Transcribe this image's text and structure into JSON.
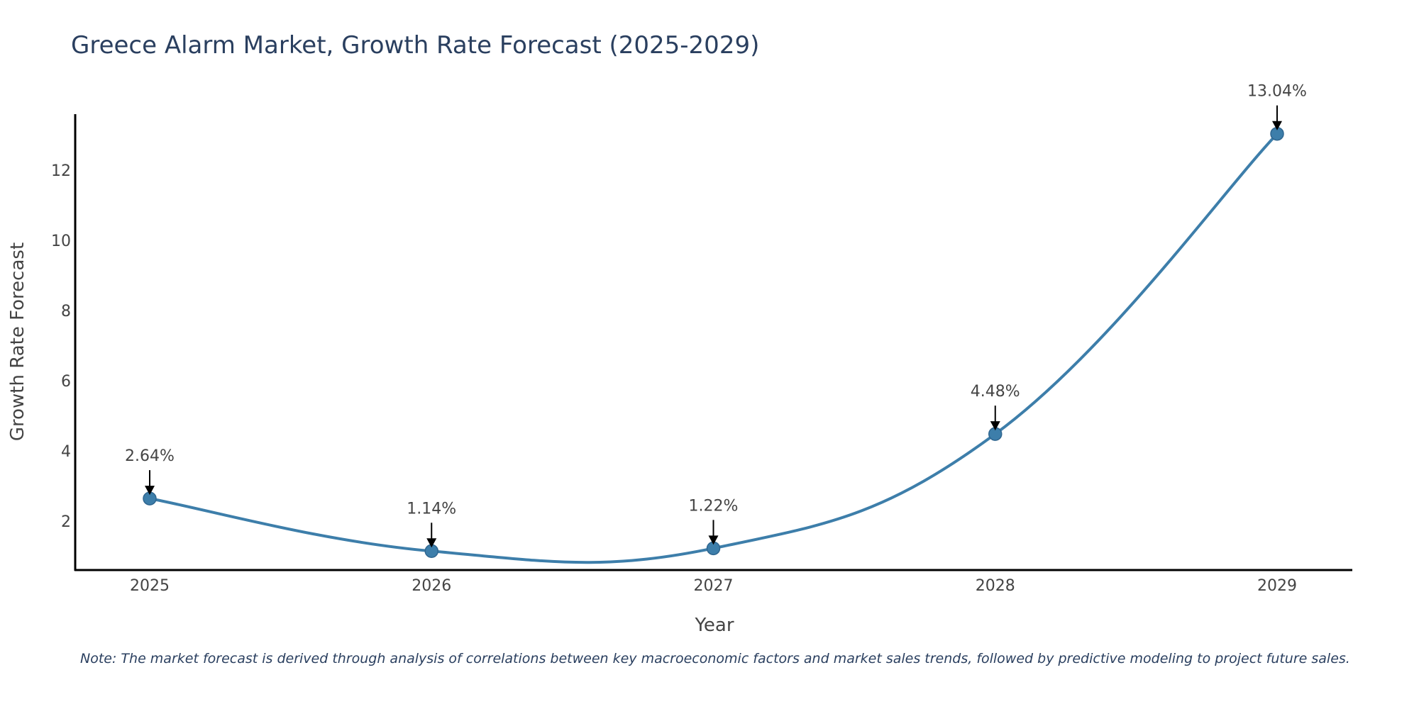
{
  "chart_data": {
    "type": "line",
    "title": "Greece Alarm Market, Growth Rate Forecast (2025-2029)",
    "xlabel": "Year",
    "ylabel": "Growth Rate Forecast",
    "categories": [
      "2025",
      "2026",
      "2027",
      "2028",
      "2029"
    ],
    "series": [
      {
        "name": "Growth Rate Forecast",
        "values": [
          2.64,
          1.14,
          1.22,
          4.48,
          13.04
        ]
      }
    ],
    "data_labels": [
      "2.64%",
      "1.14%",
      "1.22%",
      "4.48%",
      "13.04%"
    ],
    "yticks": [
      2,
      4,
      6,
      8,
      10,
      12
    ],
    "ylim": [
      0.6,
      13.6
    ],
    "line_color": "#3d7eaa",
    "marker_color": "#3d7eaa",
    "arrow_color": "#000000",
    "grid": false,
    "legend": "none"
  },
  "note": "Note: The market forecast is derived through analysis of correlations between key macroeconomic factors and market sales trends, followed by predictive modeling to project future sales."
}
